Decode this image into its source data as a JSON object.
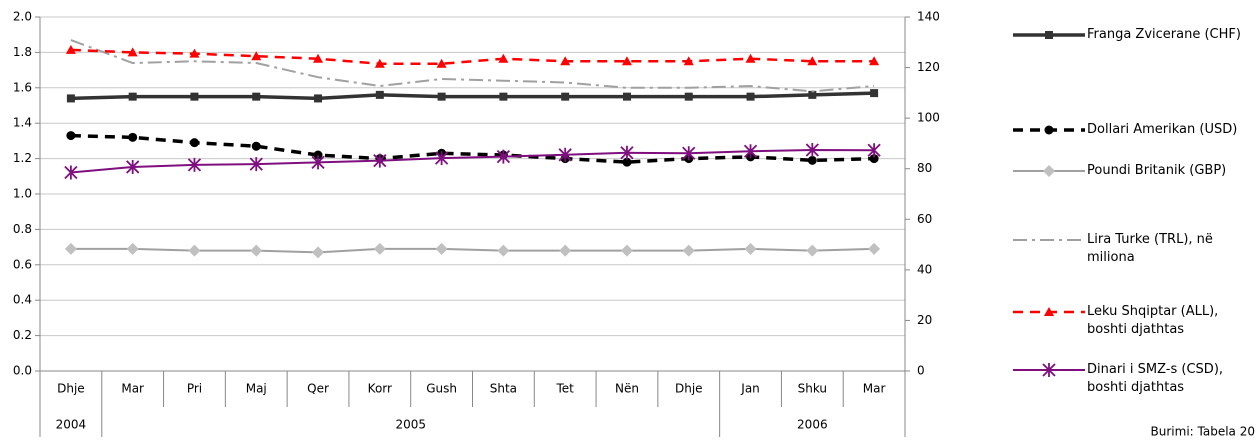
{
  "chart_data": {
    "type": "line",
    "category_groups": [
      {
        "label": "2004",
        "categories": [
          "Dhje"
        ]
      },
      {
        "label": "2005",
        "categories": [
          "Mar",
          "Pri",
          "Maj",
          "Qer",
          "Korr",
          "Gush",
          "Shta",
          "Tet",
          "Nën",
          "Dhje"
        ]
      },
      {
        "label": "2006",
        "categories": [
          "Jan",
          "Shku",
          "Mar"
        ]
      }
    ],
    "ylim": [
      0,
      2
    ],
    "yticks": [
      {
        "value": 0,
        "label": "0.0"
      },
      0.2,
      0.4,
      0.6,
      0.8,
      {
        "value": 1,
        "label": "1.0"
      },
      1.2,
      1.4,
      1.6,
      1.8,
      {
        "value": 2,
        "label": "2.0"
      }
    ],
    "y2lim": [
      0,
      140
    ],
    "y2ticks": [
      0,
      20,
      40,
      60,
      80,
      100,
      120,
      140
    ],
    "grid": true,
    "legend": "right",
    "series": [
      {
        "name": "Franga Zvicerane (CHF)",
        "color": "#333333",
        "marker": "square",
        "dash": "solid",
        "line_width": 3.5,
        "values": [
          1.54,
          1.55,
          1.55,
          1.55,
          1.54,
          1.56,
          1.55,
          1.55,
          1.55,
          1.55,
          1.55,
          1.55,
          1.56,
          1.57
        ]
      },
      {
        "name": "Dollari Amerikan (USD)",
        "color": "#000000",
        "marker": "circle",
        "dash": "dash",
        "line_width": 3.5,
        "values": [
          1.33,
          1.32,
          1.29,
          1.27,
          1.22,
          1.2,
          1.23,
          1.22,
          1.2,
          1.18,
          1.2,
          1.21,
          1.19,
          1.2
        ]
      },
      {
        "name": "Poundi Britanik (GBP)",
        "color": "#a0a0a0",
        "marker": "diamond",
        "dash": "solid",
        "line_width": 2,
        "values": [
          0.69,
          0.69,
          0.68,
          0.68,
          0.67,
          0.69,
          0.69,
          0.68,
          0.68,
          0.68,
          0.68,
          0.69,
          0.68,
          0.69
        ]
      },
      {
        "name": "Lira Turke (TRL), në miliona",
        "color": "#a0a0a0",
        "marker": "none",
        "dash": "dashdot",
        "line_width": 2,
        "values": [
          1.87,
          1.74,
          1.75,
          1.74,
          1.66,
          1.61,
          1.65,
          1.64,
          1.63,
          1.6,
          1.6,
          1.61,
          1.58,
          1.61
        ]
      },
      {
        "name": "Leku Shqiptar (ALL), boshti djathtas",
        "color": "#ff0000",
        "marker": "triangle",
        "dash": "dash",
        "line_width": 2.5,
        "axis": "y2",
        "values": [
          127,
          126,
          125.5,
          124.5,
          123.5,
          121.5,
          121.5,
          123.5,
          122.5,
          122.5,
          122.5,
          123.5,
          122.5,
          122.5
        ]
      },
      {
        "name": "Dinari i SMZ-s (CSD), boshti djathtas",
        "color": "#7f0f7f",
        "marker": "asterisk",
        "dash": "solid",
        "line_width": 2,
        "axis": "y2",
        "values": [
          78.5,
          80.7,
          81.5,
          81.8,
          82.5,
          83.2,
          84.2,
          84.8,
          85.5,
          86.3,
          86.1,
          86.9,
          87.4,
          87.3
        ]
      }
    ],
    "source": "Burimi: Tabela 20"
  }
}
